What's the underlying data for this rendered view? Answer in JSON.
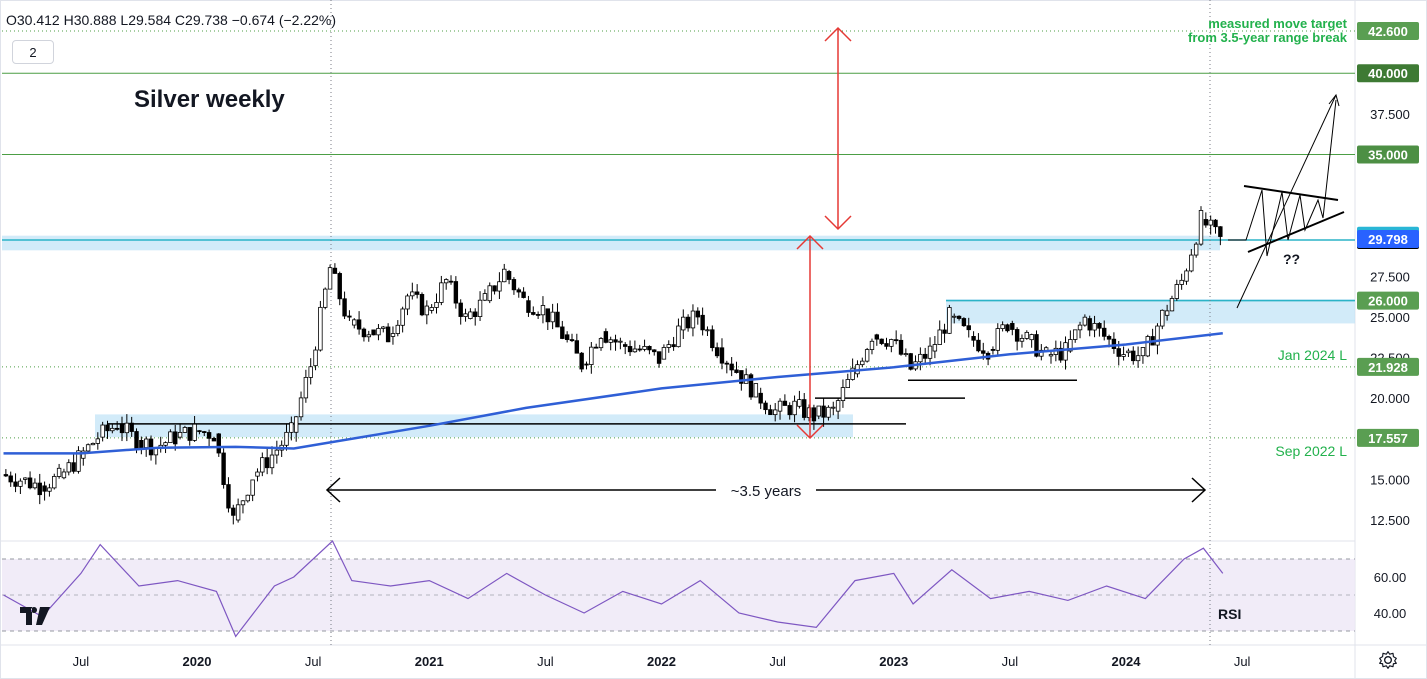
{
  "header": {
    "ohlc_text": "O30.412  H30.888  L29.584  C29.738  −0.674 (−2.22%)",
    "badge": "2"
  },
  "chart_data": {
    "type": "candlestick",
    "title": "Silver weekly",
    "ylim": [
      11.5,
      43.5
    ],
    "price_ticks": [
      "12.500",
      "15.000",
      "17.500",
      "20.000",
      "22.500",
      "25.000",
      "27.500",
      "30.000",
      "37.500"
    ],
    "price_tick_values": [
      12.5,
      15,
      17.5,
      20,
      22.5,
      25,
      27.5,
      30,
      37.5
    ],
    "x_ticks": [
      {
        "label": "Jul",
        "date": "2019-07"
      },
      {
        "label": "2020",
        "date": "2020-01"
      },
      {
        "label": "Jul",
        "date": "2020-07"
      },
      {
        "label": "2021",
        "date": "2021-01"
      },
      {
        "label": "Jul",
        "date": "2021-07"
      },
      {
        "label": "2022",
        "date": "2022-01"
      },
      {
        "label": "Jul",
        "date": "2022-07"
      },
      {
        "label": "2023",
        "date": "2023-01"
      },
      {
        "label": "Jul",
        "date": "2023-07"
      },
      {
        "label": "2024",
        "date": "2024-01"
      },
      {
        "label": "Jul",
        "date": "2024-07"
      }
    ],
    "x_range": [
      "2019-03",
      "2025-01"
    ],
    "horizontal_levels": [
      {
        "value": 42.6,
        "label": "42.600",
        "style": "dotted-green",
        "badge": "#5a9e52"
      },
      {
        "value": 40.0,
        "label": "40.000",
        "style": "solid-green",
        "badge": "#3e7a34"
      },
      {
        "value": 35.0,
        "label": "35.000",
        "style": "solid-green",
        "badge": "#4d8f44"
      },
      {
        "value": 29.738,
        "label": "29.738",
        "style": "teal",
        "badge": "#000000"
      },
      {
        "value": 26.0,
        "label": "26.000",
        "style": "teal",
        "badge": "#5a9e52"
      },
      {
        "value": 21.928,
        "label": "21.928",
        "style": "dotted-green",
        "badge": "#5a9e52"
      },
      {
        "value": 17.557,
        "label": "17.557",
        "style": "dotted-green",
        "badge": "#5a9e52"
      }
    ],
    "current_price_badges": [
      {
        "value": 30.0,
        "label": "30.000",
        "color": "#29b6d6"
      },
      {
        "value": 29.798,
        "label": "29.798",
        "color": "#2962ff"
      }
    ],
    "annotations": {
      "target_line1": "measured move target",
      "target_line2": "from 3.5-year range break",
      "jan_low": "Jan 2024 L",
      "sep_low": "Sep 2022 L",
      "duration": "~3.5 years",
      "question": "??"
    },
    "ma_series": [
      [
        "2019-03",
        16.6
      ],
      [
        "2019-07",
        16.6
      ],
      [
        "2019-11",
        16.95
      ],
      [
        "2020-03",
        17.0
      ],
      [
        "2020-06",
        16.9
      ],
      [
        "2020-08",
        17.3
      ],
      [
        "2021-01",
        18.3
      ],
      [
        "2021-06",
        19.4
      ],
      [
        "2022-01",
        20.6
      ],
      [
        "2022-07",
        21.3
      ],
      [
        "2023-01",
        21.9
      ],
      [
        "2023-07",
        22.7
      ],
      [
        "2024-01",
        23.3
      ],
      [
        "2024-06",
        24.0
      ]
    ],
    "price_series": [
      [
        "2019-03",
        15.3
      ],
      [
        "2019-04",
        15.0
      ],
      [
        "2019-05",
        14.6
      ],
      [
        "2019-06",
        15.1
      ],
      [
        "2019-07",
        16.3
      ],
      [
        "2019-08",
        17.6
      ],
      [
        "2019-09",
        18.4
      ],
      [
        "2019-10",
        17.4
      ],
      [
        "2019-11",
        17.0
      ],
      [
        "2019-12",
        17.6
      ],
      [
        "2020-01",
        18.0
      ],
      [
        "2020-02",
        17.8
      ],
      [
        "2020-03",
        12.5
      ],
      [
        "2020-04",
        15.2
      ],
      [
        "2020-05",
        16.5
      ],
      [
        "2020-06",
        17.9
      ],
      [
        "2020-07",
        22.0
      ],
      [
        "2020-08",
        28.0
      ],
      [
        "2020-09",
        24.5
      ],
      [
        "2020-10",
        24.2
      ],
      [
        "2020-11",
        23.8
      ],
      [
        "2020-12",
        26.3
      ],
      [
        "2021-01",
        25.4
      ],
      [
        "2021-02",
        27.2
      ],
      [
        "2021-03",
        24.9
      ],
      [
        "2021-04",
        26.0
      ],
      [
        "2021-05",
        27.8
      ],
      [
        "2021-06",
        26.0
      ],
      [
        "2021-07",
        25.5
      ],
      [
        "2021-08",
        23.9
      ],
      [
        "2021-09",
        22.1
      ],
      [
        "2021-10",
        24.1
      ],
      [
        "2021-11",
        23.3
      ],
      [
        "2021-12",
        23.0
      ],
      [
        "2022-01",
        22.4
      ],
      [
        "2022-02",
        24.2
      ],
      [
        "2022-03",
        25.1
      ],
      [
        "2022-04",
        23.1
      ],
      [
        "2022-05",
        21.7
      ],
      [
        "2022-06",
        20.3
      ],
      [
        "2022-07",
        19.2
      ],
      [
        "2022-08",
        19.5
      ],
      [
        "2022-09",
        18.9
      ],
      [
        "2022-10",
        19.2
      ],
      [
        "2022-11",
        21.5
      ],
      [
        "2022-12",
        23.9
      ],
      [
        "2023-01",
        23.6
      ],
      [
        "2023-02",
        21.8
      ],
      [
        "2023-03",
        22.9
      ],
      [
        "2023-04",
        25.0
      ],
      [
        "2023-05",
        23.8
      ],
      [
        "2023-06",
        23.0
      ],
      [
        "2023-07",
        24.6
      ],
      [
        "2023-08",
        23.6
      ],
      [
        "2023-09",
        22.6
      ],
      [
        "2023-10",
        22.9
      ],
      [
        "2023-11",
        24.9
      ],
      [
        "2023-12",
        23.8
      ],
      [
        "2024-01",
        22.8
      ],
      [
        "2024-02",
        22.6
      ],
      [
        "2024-03",
        25.1
      ],
      [
        "2024-04",
        27.2
      ],
      [
        "2024-05",
        31.0
      ],
      [
        "2024-06",
        29.74
      ]
    ],
    "rsi": {
      "label": "RSI",
      "ylim": [
        25,
        80
      ],
      "ticks": [
        {
          "label": "60.00",
          "value": 60
        },
        {
          "label": "40.00",
          "value": 40
        }
      ],
      "band": [
        30,
        70
      ],
      "series": [
        [
          "2019-03",
          50
        ],
        [
          "2019-05",
          38
        ],
        [
          "2019-07",
          62
        ],
        [
          "2019-08",
          78
        ],
        [
          "2019-10",
          55
        ],
        [
          "2019-12",
          58
        ],
        [
          "2020-02",
          52
        ],
        [
          "2020-03",
          27
        ],
        [
          "2020-05",
          55
        ],
        [
          "2020-06",
          60
        ],
        [
          "2020-08",
          80
        ],
        [
          "2020-09",
          58
        ],
        [
          "2020-11",
          55
        ],
        [
          "2021-01",
          58
        ],
        [
          "2021-03",
          48
        ],
        [
          "2021-05",
          62
        ],
        [
          "2021-07",
          50
        ],
        [
          "2021-09",
          40
        ],
        [
          "2021-11",
          52
        ],
        [
          "2022-01",
          45
        ],
        [
          "2022-03",
          58
        ],
        [
          "2022-05",
          40
        ],
        [
          "2022-07",
          35
        ],
        [
          "2022-09",
          32
        ],
        [
          "2022-11",
          58
        ],
        [
          "2023-01",
          62
        ],
        [
          "2023-02",
          45
        ],
        [
          "2023-04",
          64
        ],
        [
          "2023-06",
          48
        ],
        [
          "2023-08",
          52
        ],
        [
          "2023-10",
          47
        ],
        [
          "2023-12",
          55
        ],
        [
          "2024-02",
          48
        ],
        [
          "2024-04",
          70
        ],
        [
          "2024-05",
          76
        ],
        [
          "2024-06",
          62
        ]
      ]
    }
  }
}
